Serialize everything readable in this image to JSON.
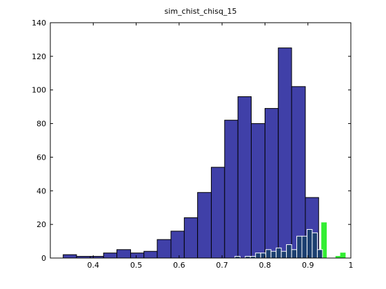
{
  "chart_data": {
    "type": "histogram",
    "title": "sim_chist_chisq_15",
    "xlim": [
      0.3,
      1
    ],
    "xticks": [
      0.4,
      0.5,
      0.6,
      0.7,
      0.8,
      0.9,
      1
    ],
    "ylim": [
      0,
      140
    ],
    "yticks": [
      0,
      20,
      40,
      60,
      80,
      100,
      120,
      140
    ],
    "series": [
      {
        "color": "#4040a8",
        "edge": "#000000",
        "bins": [
          0.33,
          0.361,
          0.393,
          0.424,
          0.455,
          0.487,
          0.518,
          0.549,
          0.581,
          0.612,
          0.643,
          0.675,
          0.706,
          0.737,
          0.768,
          0.8,
          0.831,
          0.862,
          0.894,
          0.925
        ],
        "values": [
          2,
          1,
          1,
          3,
          5,
          3,
          4,
          11,
          16,
          24,
          39,
          54,
          82,
          96,
          80,
          89,
          125,
          102,
          36
        ]
      },
      {
        "color": "#33ee33",
        "edge": "#33ee33",
        "bins": [
          0.932,
          0.943,
          0.954,
          0.965,
          0.976,
          0.987
        ],
        "values": [
          21,
          0,
          0,
          1,
          3
        ]
      },
      {
        "color": "#1c3f70",
        "edge": "#ffffff",
        "bins": [
          0.73,
          0.742,
          0.754,
          0.766,
          0.778,
          0.79,
          0.802,
          0.814,
          0.826,
          0.838,
          0.85,
          0.862,
          0.874,
          0.886,
          0.898,
          0.91,
          0.922,
          0.934,
          0.946,
          0.958,
          0.97
        ],
        "values": [
          1,
          0,
          1,
          1,
          3,
          3,
          5,
          4,
          6,
          4,
          8,
          5,
          13,
          13,
          17,
          15,
          5,
          0,
          0,
          0
        ]
      }
    ]
  }
}
